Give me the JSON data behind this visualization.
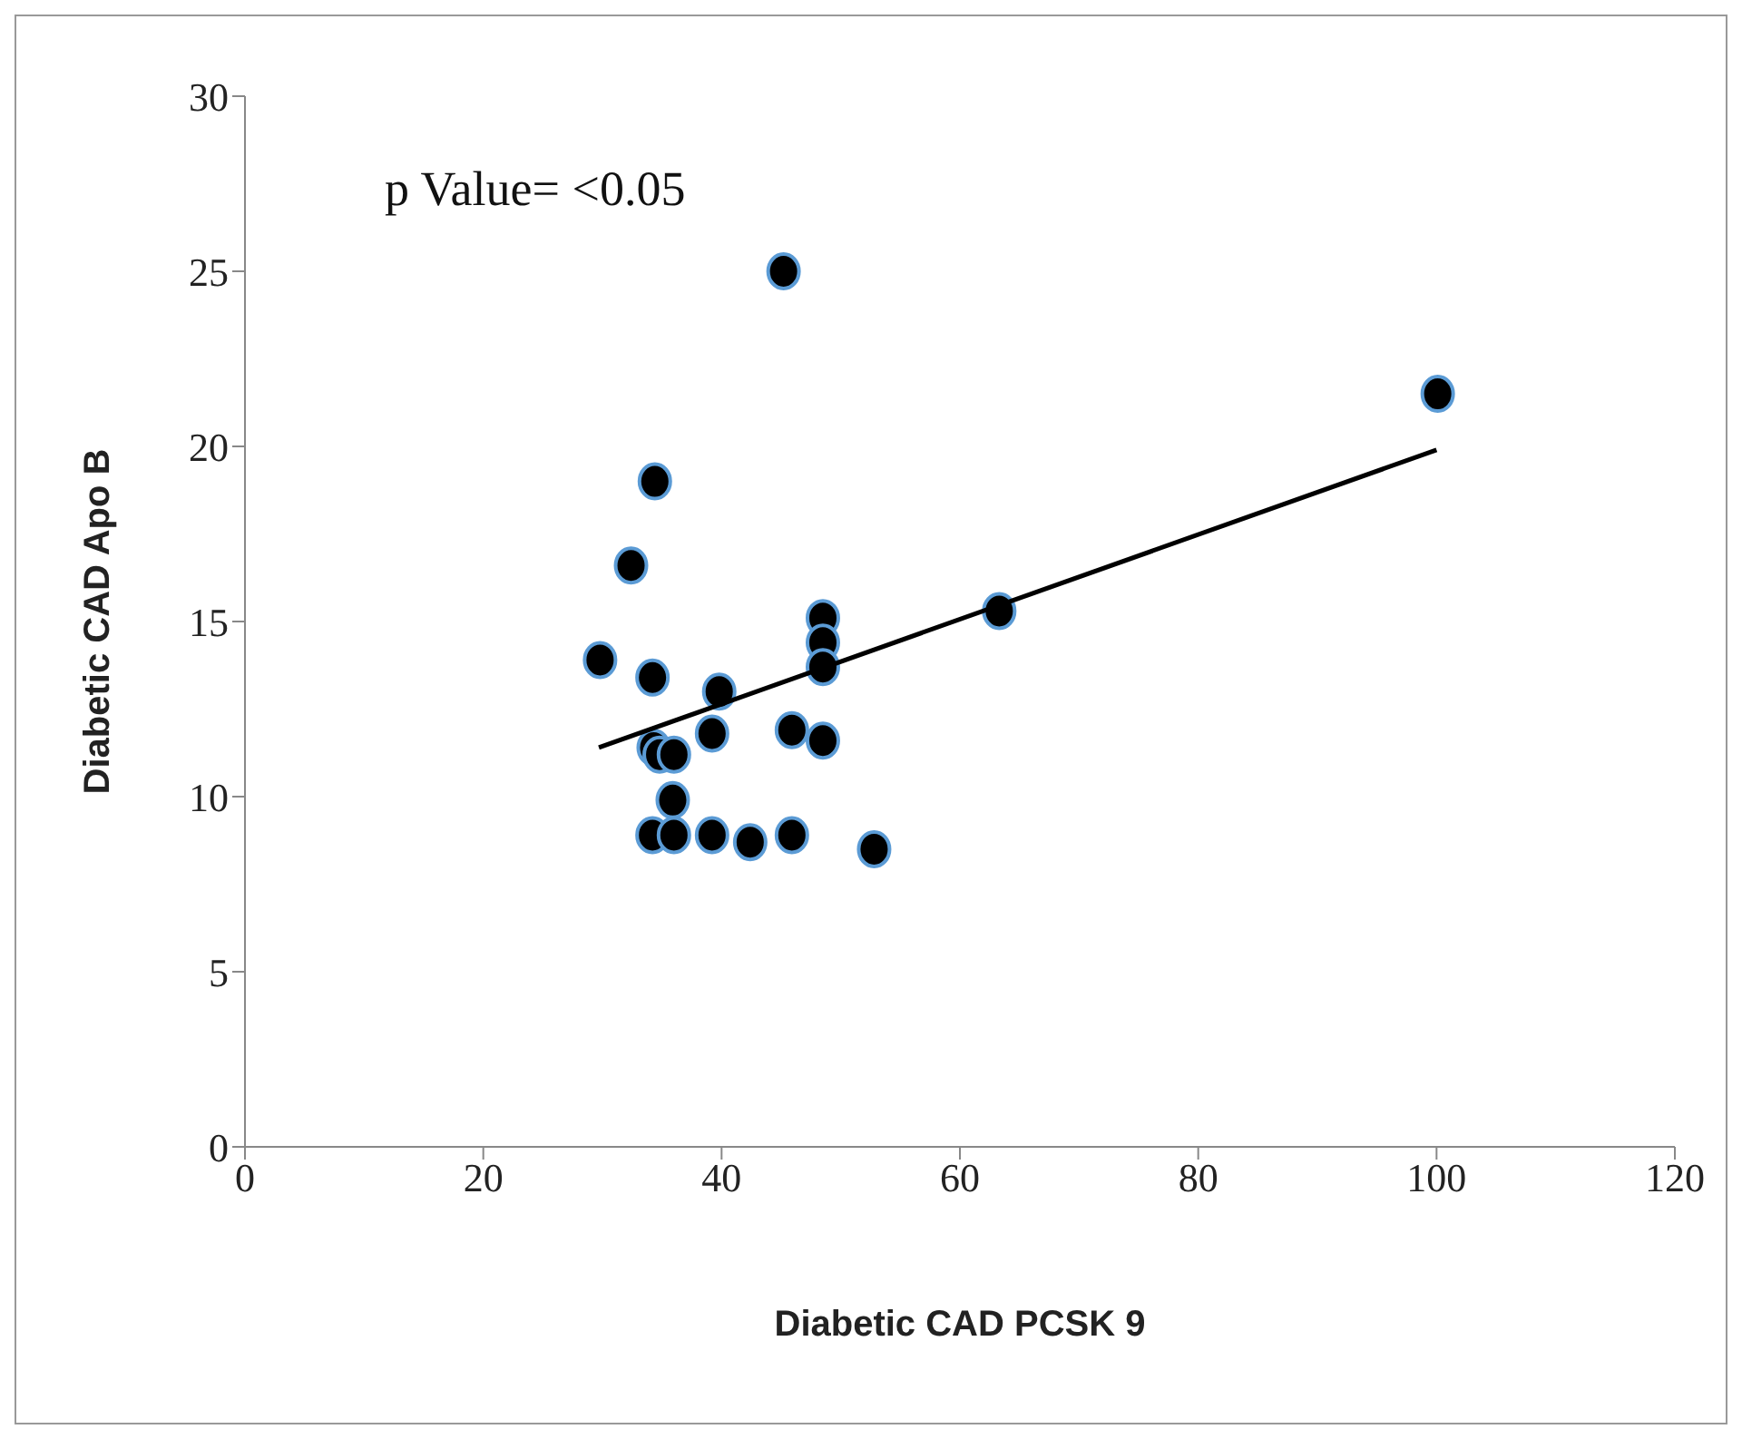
{
  "chart_data": {
    "type": "scatter",
    "xlabel": "Diabetic CAD PCSK 9",
    "ylabel": "Diabetic CAD Apo B",
    "annotations": [
      "p Value= <0.05"
    ],
    "xlim": [
      0,
      120
    ],
    "xticks": [
      0,
      20,
      40,
      60,
      80,
      100,
      120
    ],
    "ylim": [
      0,
      30
    ],
    "yticks": [
      0,
      5,
      10,
      15,
      20,
      25,
      30
    ],
    "series": [
      {
        "marker": "circle",
        "color": "#000000",
        "x": [
          29.8,
          32.4,
          34.4,
          34.2,
          34.3,
          34.8,
          36.0,
          35.9,
          34.2,
          36.0,
          39.2,
          39.8,
          39.2,
          42.4,
          45.2,
          45.9,
          45.9,
          48.5,
          48.5,
          48.5,
          48.5,
          52.8,
          63.3,
          100.1
        ],
        "values": [
          13.9,
          16.6,
          19.0,
          13.4,
          11.4,
          11.2,
          11.2,
          9.9,
          8.9,
          8.9,
          11.8,
          13.0,
          8.9,
          8.7,
          25.0,
          11.9,
          8.9,
          15.1,
          14.4,
          13.7,
          11.6,
          8.5,
          15.3,
          21.5
        ]
      },
      {
        "type": "line",
        "marker": "none",
        "color": "#000000",
        "x": [
          29.7,
          100
        ],
        "values": [
          11.4,
          19.9
        ]
      }
    ]
  }
}
